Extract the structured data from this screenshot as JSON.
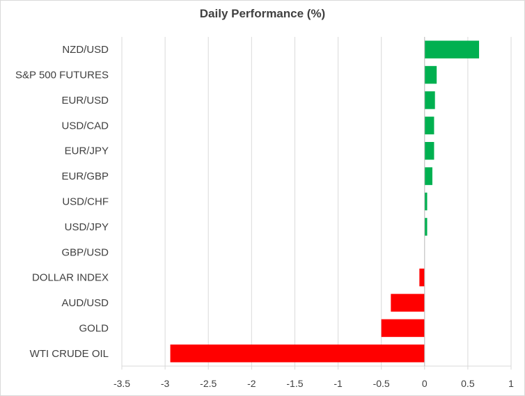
{
  "chart_data": {
    "type": "bar",
    "orientation": "horizontal",
    "title": "Daily Performance (%)",
    "xlabel": "",
    "ylabel": "",
    "categories": [
      "NZD/USD",
      "S&P 500 FUTURES",
      "EUR/USD",
      "USD/CAD",
      "EUR/JPY",
      "EUR/GBP",
      "USD/CHF",
      "USD/JPY",
      "GBP/USD",
      "DOLLAR INDEX",
      "AUD/USD",
      "GOLD",
      "WTI CRUDE OIL"
    ],
    "values": [
      0.63,
      0.14,
      0.12,
      0.11,
      0.11,
      0.09,
      0.03,
      0.03,
      0.0,
      -0.06,
      -0.39,
      -0.5,
      -2.94
    ],
    "xlim": [
      -3.5,
      1
    ],
    "xticks": [
      "-3.5",
      "-3",
      "-2.5",
      "-2",
      "-1.5",
      "-1",
      "-0.5",
      "0",
      "0.5",
      "1"
    ],
    "grid": "vertical",
    "legend": "none",
    "colors": {
      "positive": "#00b050",
      "negative": "#ff0000",
      "grid": "#d9d9d9",
      "text": "#404040"
    }
  }
}
